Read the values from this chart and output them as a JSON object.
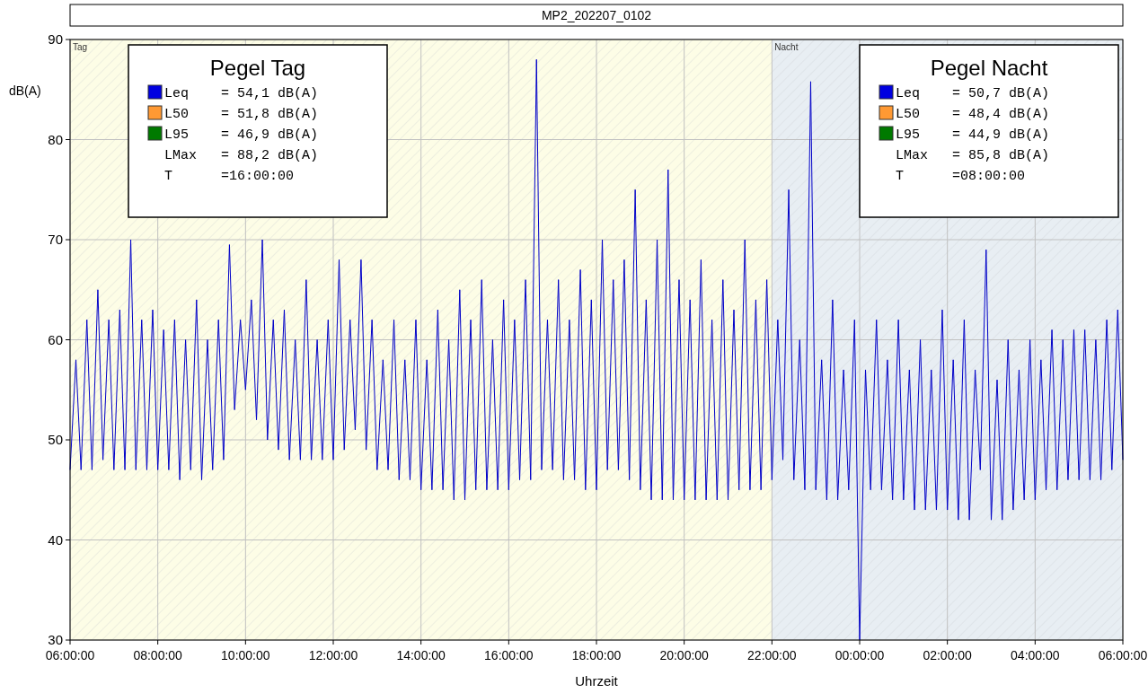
{
  "chart_data": {
    "type": "line",
    "title": "MP2_202207_0102",
    "xlabel": "Uhrzeit",
    "ylabel": "dB(A)",
    "xlim": [
      "2022-07-01T06:00",
      "2022-07-02T06:00"
    ],
    "xticks": [
      {
        "value": "2022-07-01T06:00",
        "label": "06:00:00"
      },
      {
        "value": "2022-07-01T08:00",
        "label": "08:00:00"
      },
      {
        "value": "2022-07-01T10:00",
        "label": "10:00:00"
      },
      {
        "value": "2022-07-01T12:00",
        "label": "12:00:00"
      },
      {
        "value": "2022-07-01T14:00",
        "label": "14:00:00"
      },
      {
        "value": "2022-07-01T16:00",
        "label": "16:00:00"
      },
      {
        "value": "2022-07-01T18:00",
        "label": "18:00:00"
      },
      {
        "value": "2022-07-01T20:00",
        "label": "20:00:00"
      },
      {
        "value": "2022-07-01T22:00",
        "label": "22:00:00"
      },
      {
        "value": "2022-07-02T00:00",
        "label": "00:00:00"
      },
      {
        "value": "2022-07-02T02:00",
        "label": "02:00:00"
      },
      {
        "value": "2022-07-02T04:00",
        "label": "04:00:00"
      },
      {
        "value": "2022-07-02T06:00",
        "label": "06:00:00"
      }
    ],
    "ylim": [
      30,
      90
    ],
    "yticks": [
      30,
      40,
      50,
      60,
      70,
      80,
      90
    ],
    "grid": true,
    "bands": [
      {
        "axis": "x",
        "from": "2022-07-01T06:00",
        "to": "2022-07-01T22:00",
        "label": "Tag",
        "color": "#fdfde6"
      },
      {
        "axis": "x",
        "from": "2022-07-01T22:00",
        "to": "2022-07-02T06:00",
        "label": "Nacht",
        "color": "#e8eef3"
      }
    ],
    "annotations": [
      "Pegel Tag",
      "Leq    = 54,1 dB(A)",
      "L50    = 51,8 dB(A)",
      "L95    = 46,9 dB(A)",
      "LMax   = 88,2 dB(A)",
      "T      =16:00:00",
      "Pegel Nacht",
      "Leq    = 50,7 dB(A)",
      "L50    = 48,4 dB(A)",
      "L95    = 44,9 dB(A)",
      "LMax   = 85,8 dB(A)",
      "T      =08:00:00"
    ],
    "series": [
      {
        "color": "#0000c8",
        "x": [
          "2022-07-01T06:00",
          "2022-07-01T06:08",
          "2022-07-01T06:15",
          "2022-07-01T06:23",
          "2022-07-01T06:30",
          "2022-07-01T06:38",
          "2022-07-01T06:45",
          "2022-07-01T06:53",
          "2022-07-01T07:00",
          "2022-07-01T07:08",
          "2022-07-01T07:15",
          "2022-07-01T07:23",
          "2022-07-01T07:30",
          "2022-07-01T07:38",
          "2022-07-01T07:45",
          "2022-07-01T07:53",
          "2022-07-01T08:00",
          "2022-07-01T08:08",
          "2022-07-01T08:15",
          "2022-07-01T08:23",
          "2022-07-01T08:30",
          "2022-07-01T08:38",
          "2022-07-01T08:45",
          "2022-07-01T08:53",
          "2022-07-01T09:00",
          "2022-07-01T09:08",
          "2022-07-01T09:15",
          "2022-07-01T09:23",
          "2022-07-01T09:30",
          "2022-07-01T09:38",
          "2022-07-01T09:45",
          "2022-07-01T09:53",
          "2022-07-01T10:00",
          "2022-07-01T10:08",
          "2022-07-01T10:15",
          "2022-07-01T10:23",
          "2022-07-01T10:30",
          "2022-07-01T10:38",
          "2022-07-01T10:45",
          "2022-07-01T10:53",
          "2022-07-01T11:00",
          "2022-07-01T11:08",
          "2022-07-01T11:15",
          "2022-07-01T11:23",
          "2022-07-01T11:30",
          "2022-07-01T11:38",
          "2022-07-01T11:45",
          "2022-07-01T11:53",
          "2022-07-01T12:00",
          "2022-07-01T12:08",
          "2022-07-01T12:15",
          "2022-07-01T12:23",
          "2022-07-01T12:30",
          "2022-07-01T12:38",
          "2022-07-01T12:45",
          "2022-07-01T12:53",
          "2022-07-01T13:00",
          "2022-07-01T13:08",
          "2022-07-01T13:15",
          "2022-07-01T13:23",
          "2022-07-01T13:30",
          "2022-07-01T13:38",
          "2022-07-01T13:45",
          "2022-07-01T13:53",
          "2022-07-01T14:00",
          "2022-07-01T14:08",
          "2022-07-01T14:15",
          "2022-07-01T14:23",
          "2022-07-01T14:30",
          "2022-07-01T14:38",
          "2022-07-01T14:45",
          "2022-07-01T14:53",
          "2022-07-01T15:00",
          "2022-07-01T15:08",
          "2022-07-01T15:15",
          "2022-07-01T15:23",
          "2022-07-01T15:30",
          "2022-07-01T15:38",
          "2022-07-01T15:45",
          "2022-07-01T15:53",
          "2022-07-01T16:00",
          "2022-07-01T16:08",
          "2022-07-01T16:15",
          "2022-07-01T16:23",
          "2022-07-01T16:30",
          "2022-07-01T16:38",
          "2022-07-01T16:45",
          "2022-07-01T16:53",
          "2022-07-01T17:00",
          "2022-07-01T17:08",
          "2022-07-01T17:15",
          "2022-07-01T17:23",
          "2022-07-01T17:30",
          "2022-07-01T17:38",
          "2022-07-01T17:45",
          "2022-07-01T17:53",
          "2022-07-01T18:00",
          "2022-07-01T18:08",
          "2022-07-01T18:15",
          "2022-07-01T18:23",
          "2022-07-01T18:30",
          "2022-07-01T18:38",
          "2022-07-01T18:45",
          "2022-07-01T18:53",
          "2022-07-01T19:00",
          "2022-07-01T19:08",
          "2022-07-01T19:15",
          "2022-07-01T19:23",
          "2022-07-01T19:30",
          "2022-07-01T19:38",
          "2022-07-01T19:45",
          "2022-07-01T19:53",
          "2022-07-01T20:00",
          "2022-07-01T20:08",
          "2022-07-01T20:15",
          "2022-07-01T20:23",
          "2022-07-01T20:30",
          "2022-07-01T20:38",
          "2022-07-01T20:45",
          "2022-07-01T20:53",
          "2022-07-01T21:00",
          "2022-07-01T21:08",
          "2022-07-01T21:15",
          "2022-07-01T21:23",
          "2022-07-01T21:30",
          "2022-07-01T21:38",
          "2022-07-01T21:45",
          "2022-07-01T21:53",
          "2022-07-01T22:00",
          "2022-07-01T22:08",
          "2022-07-01T22:15",
          "2022-07-01T22:23",
          "2022-07-01T22:30",
          "2022-07-01T22:38",
          "2022-07-01T22:45",
          "2022-07-01T22:53",
          "2022-07-01T23:00",
          "2022-07-01T23:08",
          "2022-07-01T23:15",
          "2022-07-01T23:23",
          "2022-07-01T23:30",
          "2022-07-01T23:38",
          "2022-07-01T23:45",
          "2022-07-01T23:53",
          "2022-07-02T00:00",
          "2022-07-02T00:08",
          "2022-07-02T00:15",
          "2022-07-02T00:23",
          "2022-07-02T00:30",
          "2022-07-02T00:38",
          "2022-07-02T00:45",
          "2022-07-02T00:53",
          "2022-07-02T01:00",
          "2022-07-02T01:08",
          "2022-07-02T01:15",
          "2022-07-02T01:23",
          "2022-07-02T01:30",
          "2022-07-02T01:38",
          "2022-07-02T01:45",
          "2022-07-02T01:53",
          "2022-07-02T02:00",
          "2022-07-02T02:08",
          "2022-07-02T02:15",
          "2022-07-02T02:23",
          "2022-07-02T02:30",
          "2022-07-02T02:38",
          "2022-07-02T02:45",
          "2022-07-02T02:53",
          "2022-07-02T03:00",
          "2022-07-02T03:08",
          "2022-07-02T03:15",
          "2022-07-02T03:23",
          "2022-07-02T03:30",
          "2022-07-02T03:38",
          "2022-07-02T03:45",
          "2022-07-02T03:53",
          "2022-07-02T04:00",
          "2022-07-02T04:08",
          "2022-07-02T04:15",
          "2022-07-02T04:23",
          "2022-07-02T04:30",
          "2022-07-02T04:38",
          "2022-07-02T04:45",
          "2022-07-02T04:53",
          "2022-07-02T05:00",
          "2022-07-02T05:08",
          "2022-07-02T05:15",
          "2022-07-02T05:23",
          "2022-07-02T05:30",
          "2022-07-02T05:38",
          "2022-07-02T05:45",
          "2022-07-02T05:53",
          "2022-07-02T06:00"
        ],
        "values": [
          47,
          58,
          47,
          62,
          47,
          65,
          48,
          62,
          47,
          63,
          47,
          70,
          47,
          62,
          47,
          63,
          47,
          61,
          47,
          62,
          46,
          60,
          47,
          64,
          46,
          60,
          47,
          62,
          48,
          69.5,
          53,
          62,
          55,
          64,
          52,
          70,
          50,
          62,
          49,
          63,
          48,
          60,
          48,
          66,
          48,
          60,
          48,
          62,
          48,
          68,
          49,
          62,
          51,
          68,
          49,
          62,
          47,
          58,
          47,
          62,
          46,
          58,
          46,
          62,
          45,
          58,
          45,
          63,
          45,
          60,
          44,
          65,
          44,
          62,
          45,
          66,
          45,
          60,
          45,
          64,
          45,
          62,
          46,
          66,
          46,
          88,
          47,
          62,
          47,
          66,
          46,
          62,
          46,
          67,
          45,
          64,
          45,
          70,
          47,
          66,
          47,
          68,
          46,
          75,
          45,
          64,
          44,
          70,
          44,
          77,
          44,
          66,
          44,
          64,
          44,
          68,
          44,
          62,
          44,
          66,
          44,
          63,
          45,
          70,
          45,
          64,
          45,
          66,
          46,
          62,
          48,
          75,
          46,
          60,
          45,
          85.8,
          45,
          58,
          44,
          64,
          44,
          57,
          45,
          62,
          30,
          57,
          45,
          62,
          45,
          58,
          44,
          62,
          44,
          57,
          43,
          60,
          43,
          57,
          43,
          63,
          43,
          58,
          42,
          62,
          42,
          57,
          47,
          69,
          42,
          56,
          42,
          60,
          43,
          57,
          44,
          60,
          44,
          58,
          45,
          61,
          45,
          60,
          46,
          61,
          46,
          61,
          46,
          60,
          46,
          62,
          47,
          63,
          48
        ]
      }
    ]
  }
}
